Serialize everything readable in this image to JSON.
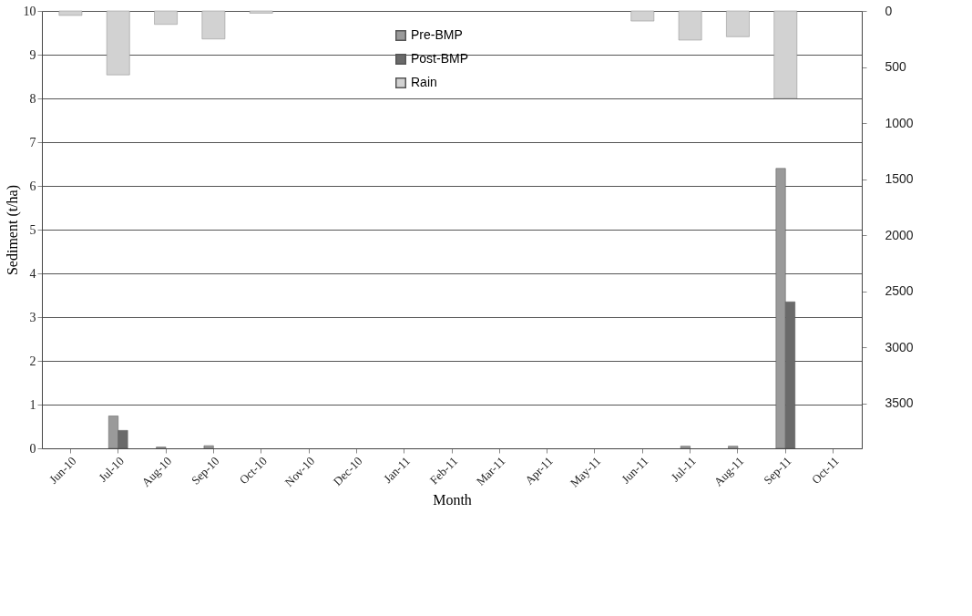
{
  "chart_data": {
    "type": "bar",
    "xlabel": "Month",
    "ylabel": "Sediment (t/ha)",
    "categories": [
      "Jun-10",
      "Jul-10",
      "Aug-10",
      "Sep-10",
      "Oct-10",
      "Nov-10",
      "Dec-10",
      "Jan-11",
      "Feb-11",
      "Mar-11",
      "Apr-11",
      "May-11",
      "Jun-11",
      "Jul-11",
      "Aug-11",
      "Sep-11",
      "Oct-11"
    ],
    "series": [
      {
        "name": "Pre-BMP",
        "color": "#9a9a9a",
        "values": [
          null,
          0.74,
          0.03,
          0.06,
          null,
          null,
          null,
          null,
          null,
          null,
          null,
          null,
          null,
          0.05,
          0.05,
          6.4,
          null
        ]
      },
      {
        "name": "Post-BMP",
        "color": "#6a6a6a",
        "values": [
          null,
          0.41,
          null,
          null,
          null,
          null,
          null,
          null,
          null,
          null,
          null,
          null,
          null,
          null,
          null,
          3.35,
          null
        ]
      },
      {
        "name": "Rain",
        "color": "#d2d2d2",
        "axis": "y2",
        "values": [
          40,
          570,
          120,
          250,
          20,
          null,
          null,
          null,
          null,
          null,
          null,
          null,
          90,
          260,
          230,
          780,
          null
        ]
      }
    ],
    "ylim": [
      0,
      10
    ],
    "yticks": [
      0,
      1,
      2,
      3,
      4,
      5,
      6,
      7,
      8,
      9,
      10
    ],
    "y2lim": [
      3900,
      0
    ],
    "y2ticks": [
      0,
      500,
      1000,
      1500,
      2000,
      2500,
      3000,
      3500
    ],
    "grid": "y",
    "legend": "top"
  }
}
